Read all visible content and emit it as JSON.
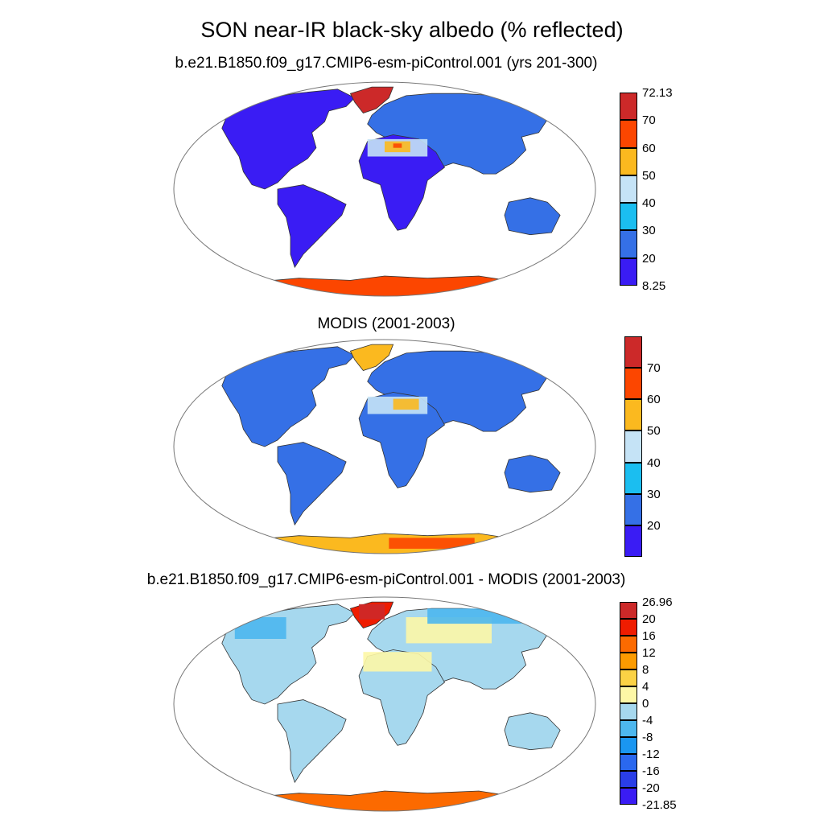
{
  "title": "SON near-IR black-sky albedo (% reflected)",
  "colors": {
    "land_outline": "#333333",
    "frame": "#777777"
  },
  "panels": [
    {
      "title": "b.e21.B1850.f09_g17.CMIP6-esm-piControl.001 (yrs 201-300)",
      "colorbar": {
        "colors": [
          "#3a1cf4",
          "#3570e6",
          "#1bbef0",
          "#c5e3f6",
          "#fbb91f",
          "#fc4600",
          "#cc2929"
        ],
        "labels": [
          "8.25",
          "20",
          "30",
          "40",
          "50",
          "60",
          "70",
          "72.13"
        ],
        "has_end_labels": true
      }
    },
    {
      "title": "MODIS (2001-2003)",
      "colorbar": {
        "colors": [
          "#3a1cf4",
          "#3570e6",
          "#1bbef0",
          "#c5e3f6",
          "#fbb91f",
          "#fc4600",
          "#cc2929"
        ],
        "labels": [
          "20",
          "30",
          "40",
          "50",
          "60",
          "70"
        ],
        "has_end_labels": false
      }
    },
    {
      "title": "b.e21.B1850.f09_g17.CMIP6-esm-piControl.001 - MODIS (2001-2003)",
      "colorbar": {
        "colors": [
          "#3a1cf4",
          "#2a3ee8",
          "#2a68ef",
          "#1a96f0",
          "#4db7ee",
          "#a6d8ee",
          "#fdf7a6",
          "#fbd245",
          "#fc9b00",
          "#fc6a00",
          "#ef1c00",
          "#cc2929"
        ],
        "labels": [
          "-21.85",
          "-20",
          "-16",
          "-12",
          "-8",
          "-4",
          "0",
          "4",
          "8",
          "12",
          "16",
          "20",
          "26.96"
        ],
        "has_end_labels": true
      }
    }
  ]
}
